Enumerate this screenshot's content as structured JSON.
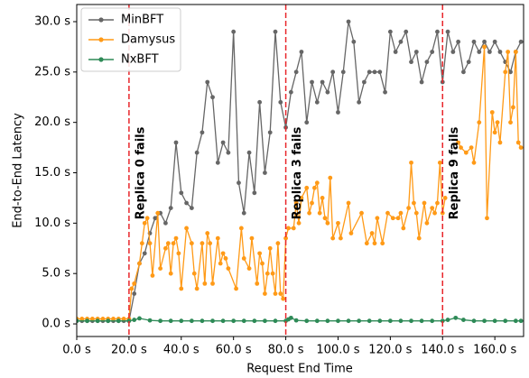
{
  "chart_data": {
    "type": "line",
    "xlabel": "Request End Time",
    "ylabel": "End-to-End Latency",
    "xlim": [
      0,
      171
    ],
    "ylim": [
      -1.25,
      31.7
    ],
    "xticks": [
      {
        "value": 0,
        "label": "0.0 s"
      },
      {
        "value": 20,
        "label": "20.0 s"
      },
      {
        "value": 40,
        "label": "40.0 s"
      },
      {
        "value": 60,
        "label": "60.0 s"
      },
      {
        "value": 80,
        "label": "80.0 s"
      },
      {
        "value": 100,
        "label": "100.0 s"
      },
      {
        "value": 120,
        "label": "120.0 s"
      },
      {
        "value": 140,
        "label": "140.0 s"
      },
      {
        "value": 160,
        "label": "160.0 s"
      }
    ],
    "yticks": [
      {
        "value": 0,
        "label": "0.0 s"
      },
      {
        "value": 5,
        "label": "5.0 s"
      },
      {
        "value": 10,
        "label": "10.0 s"
      },
      {
        "value": 15,
        "label": "15.0 s"
      },
      {
        "value": 20,
        "label": "20.0 s"
      },
      {
        "value": 25,
        "label": "25.0 s"
      },
      {
        "value": 30,
        "label": "30.0 s"
      }
    ],
    "legend": "upper left",
    "events": [
      {
        "x": 20,
        "label": "Replica 0 fails",
        "color": "#e8262b"
      },
      {
        "x": 80,
        "label": "Replica 3 fails",
        "color": "#e8262b"
      },
      {
        "x": 140,
        "label": "Replica 9 fails",
        "color": "#e8262b"
      }
    ],
    "series": [
      {
        "name": "MinBFT",
        "color": "#666666",
        "x": [
          0,
          2,
          4,
          6,
          8,
          10,
          12,
          14,
          16,
          18,
          20,
          22,
          24,
          26,
          28,
          30,
          32,
          34,
          36,
          38,
          40,
          42,
          44,
          46,
          48,
          50,
          52,
          54,
          56,
          58,
          60,
          62,
          64,
          66,
          68,
          70,
          72,
          74,
          76,
          78,
          80,
          82,
          84,
          86,
          88,
          90,
          92,
          94,
          96,
          98,
          100,
          102,
          104,
          106,
          108,
          110,
          112,
          114,
          116,
          118,
          120,
          122,
          124,
          126,
          128,
          130,
          132,
          134,
          136,
          138,
          140,
          142,
          144,
          146,
          148,
          150,
          152,
          154,
          156,
          158,
          160,
          162,
          164,
          166,
          168,
          170
        ],
        "values": [
          0.3,
          0.3,
          0.3,
          0.3,
          0.3,
          0.3,
          0.3,
          0.3,
          0.3,
          0.3,
          0.3,
          3,
          6,
          7,
          9,
          10.5,
          11,
          10,
          11.5,
          18,
          13,
          12,
          11.5,
          17,
          19,
          24,
          22.5,
          16,
          18,
          17,
          29,
          14,
          11,
          17,
          13,
          22,
          15,
          19,
          29,
          22,
          19.5,
          23,
          25,
          27,
          20,
          24,
          22,
          24,
          23,
          25,
          21,
          25,
          30,
          28,
          22,
          24,
          25,
          25,
          25,
          23,
          29,
          27,
          28,
          29,
          26,
          27,
          24,
          26,
          27,
          29,
          24,
          29,
          27,
          28,
          25,
          26,
          28,
          27,
          28,
          27,
          28,
          27,
          26,
          25,
          27,
          28
        ]
      },
      {
        "name": "Damysus",
        "color": "#ff9a17",
        "x": [
          0,
          2,
          4,
          6,
          8,
          10,
          12,
          14,
          16,
          18,
          20,
          21,
          22,
          24,
          25,
          26,
          27,
          28,
          29,
          31,
          32,
          34,
          35,
          36,
          37,
          38,
          39,
          40,
          42,
          44,
          45,
          46,
          48,
          49,
          50,
          51,
          52,
          54,
          55,
          56,
          57,
          58,
          61,
          63,
          64,
          66,
          67,
          69,
          70,
          71,
          72,
          73,
          74,
          75,
          76,
          77,
          78,
          79,
          80,
          81,
          83,
          84,
          85,
          86,
          88,
          89,
          90,
          91,
          92,
          93,
          94,
          95,
          96,
          97,
          98,
          100,
          101,
          104,
          105,
          109,
          111,
          113,
          114,
          115,
          117,
          119,
          121,
          123,
          124,
          125,
          127,
          128,
          129,
          130,
          131,
          133,
          134,
          136,
          137,
          138,
          139,
          140,
          141,
          143,
          146,
          147,
          149,
          151,
          152,
          154,
          156,
          157,
          159,
          160,
          161,
          162,
          164,
          165,
          166,
          167,
          168,
          169,
          170
        ],
        "values": [
          0.5,
          0.5,
          0.5,
          0.5,
          0.5,
          0.5,
          0.5,
          0.5,
          0.5,
          0.5,
          0.5,
          3.5,
          4,
          6,
          8,
          10,
          10.5,
          8,
          4.8,
          11,
          5.5,
          7.5,
          8,
          5,
          8,
          8.5,
          7,
          3.5,
          9.5,
          8,
          5,
          3.5,
          8,
          4,
          9,
          8,
          4,
          8.5,
          6,
          7,
          6.5,
          5.5,
          3.5,
          9.5,
          6.5,
          5.5,
          8.5,
          4,
          7,
          6,
          3,
          5,
          7.5,
          5,
          3,
          8,
          3,
          2.5,
          8.5,
          9.5,
          9.5,
          12,
          10,
          12.5,
          13.5,
          11,
          12,
          13.5,
          14,
          11,
          12.5,
          10.5,
          10,
          14.5,
          8.5,
          10,
          8.5,
          12,
          9,
          11,
          8,
          9,
          8,
          10.5,
          8,
          11,
          10.5,
          10.5,
          11,
          9.5,
          11.5,
          16,
          12,
          11,
          8.5,
          12,
          10,
          11.5,
          11,
          12,
          16,
          11,
          12.5,
          null,
          18,
          17.5,
          17,
          17.5,
          16,
          20,
          27.5,
          10.5,
          21,
          19,
          20,
          18,
          25,
          27,
          20,
          21.5,
          27,
          18,
          17.5
        ]
      },
      {
        "name": "NxBFT",
        "color": "#2e8a57",
        "x": [
          0,
          4,
          8,
          12,
          16,
          20,
          22,
          24,
          28,
          32,
          36,
          40,
          44,
          48,
          52,
          56,
          60,
          64,
          68,
          72,
          76,
          80,
          81,
          82,
          84,
          88,
          92,
          96,
          100,
          104,
          108,
          112,
          116,
          120,
          124,
          128,
          132,
          136,
          140,
          142,
          145,
          148,
          152,
          156,
          160,
          164,
          168,
          170
        ],
        "values": [
          0.3,
          0.3,
          0.3,
          0.3,
          0.3,
          0.3,
          0.4,
          0.55,
          0.35,
          0.3,
          0.3,
          0.3,
          0.3,
          0.3,
          0.3,
          0.3,
          0.3,
          0.3,
          0.3,
          0.3,
          0.3,
          0.3,
          0.45,
          0.6,
          0.35,
          0.3,
          0.3,
          0.3,
          0.3,
          0.3,
          0.3,
          0.3,
          0.3,
          0.3,
          0.3,
          0.3,
          0.3,
          0.3,
          0.3,
          0.4,
          0.6,
          0.4,
          0.3,
          0.3,
          0.3,
          0.3,
          0.3,
          0.3
        ]
      }
    ]
  }
}
